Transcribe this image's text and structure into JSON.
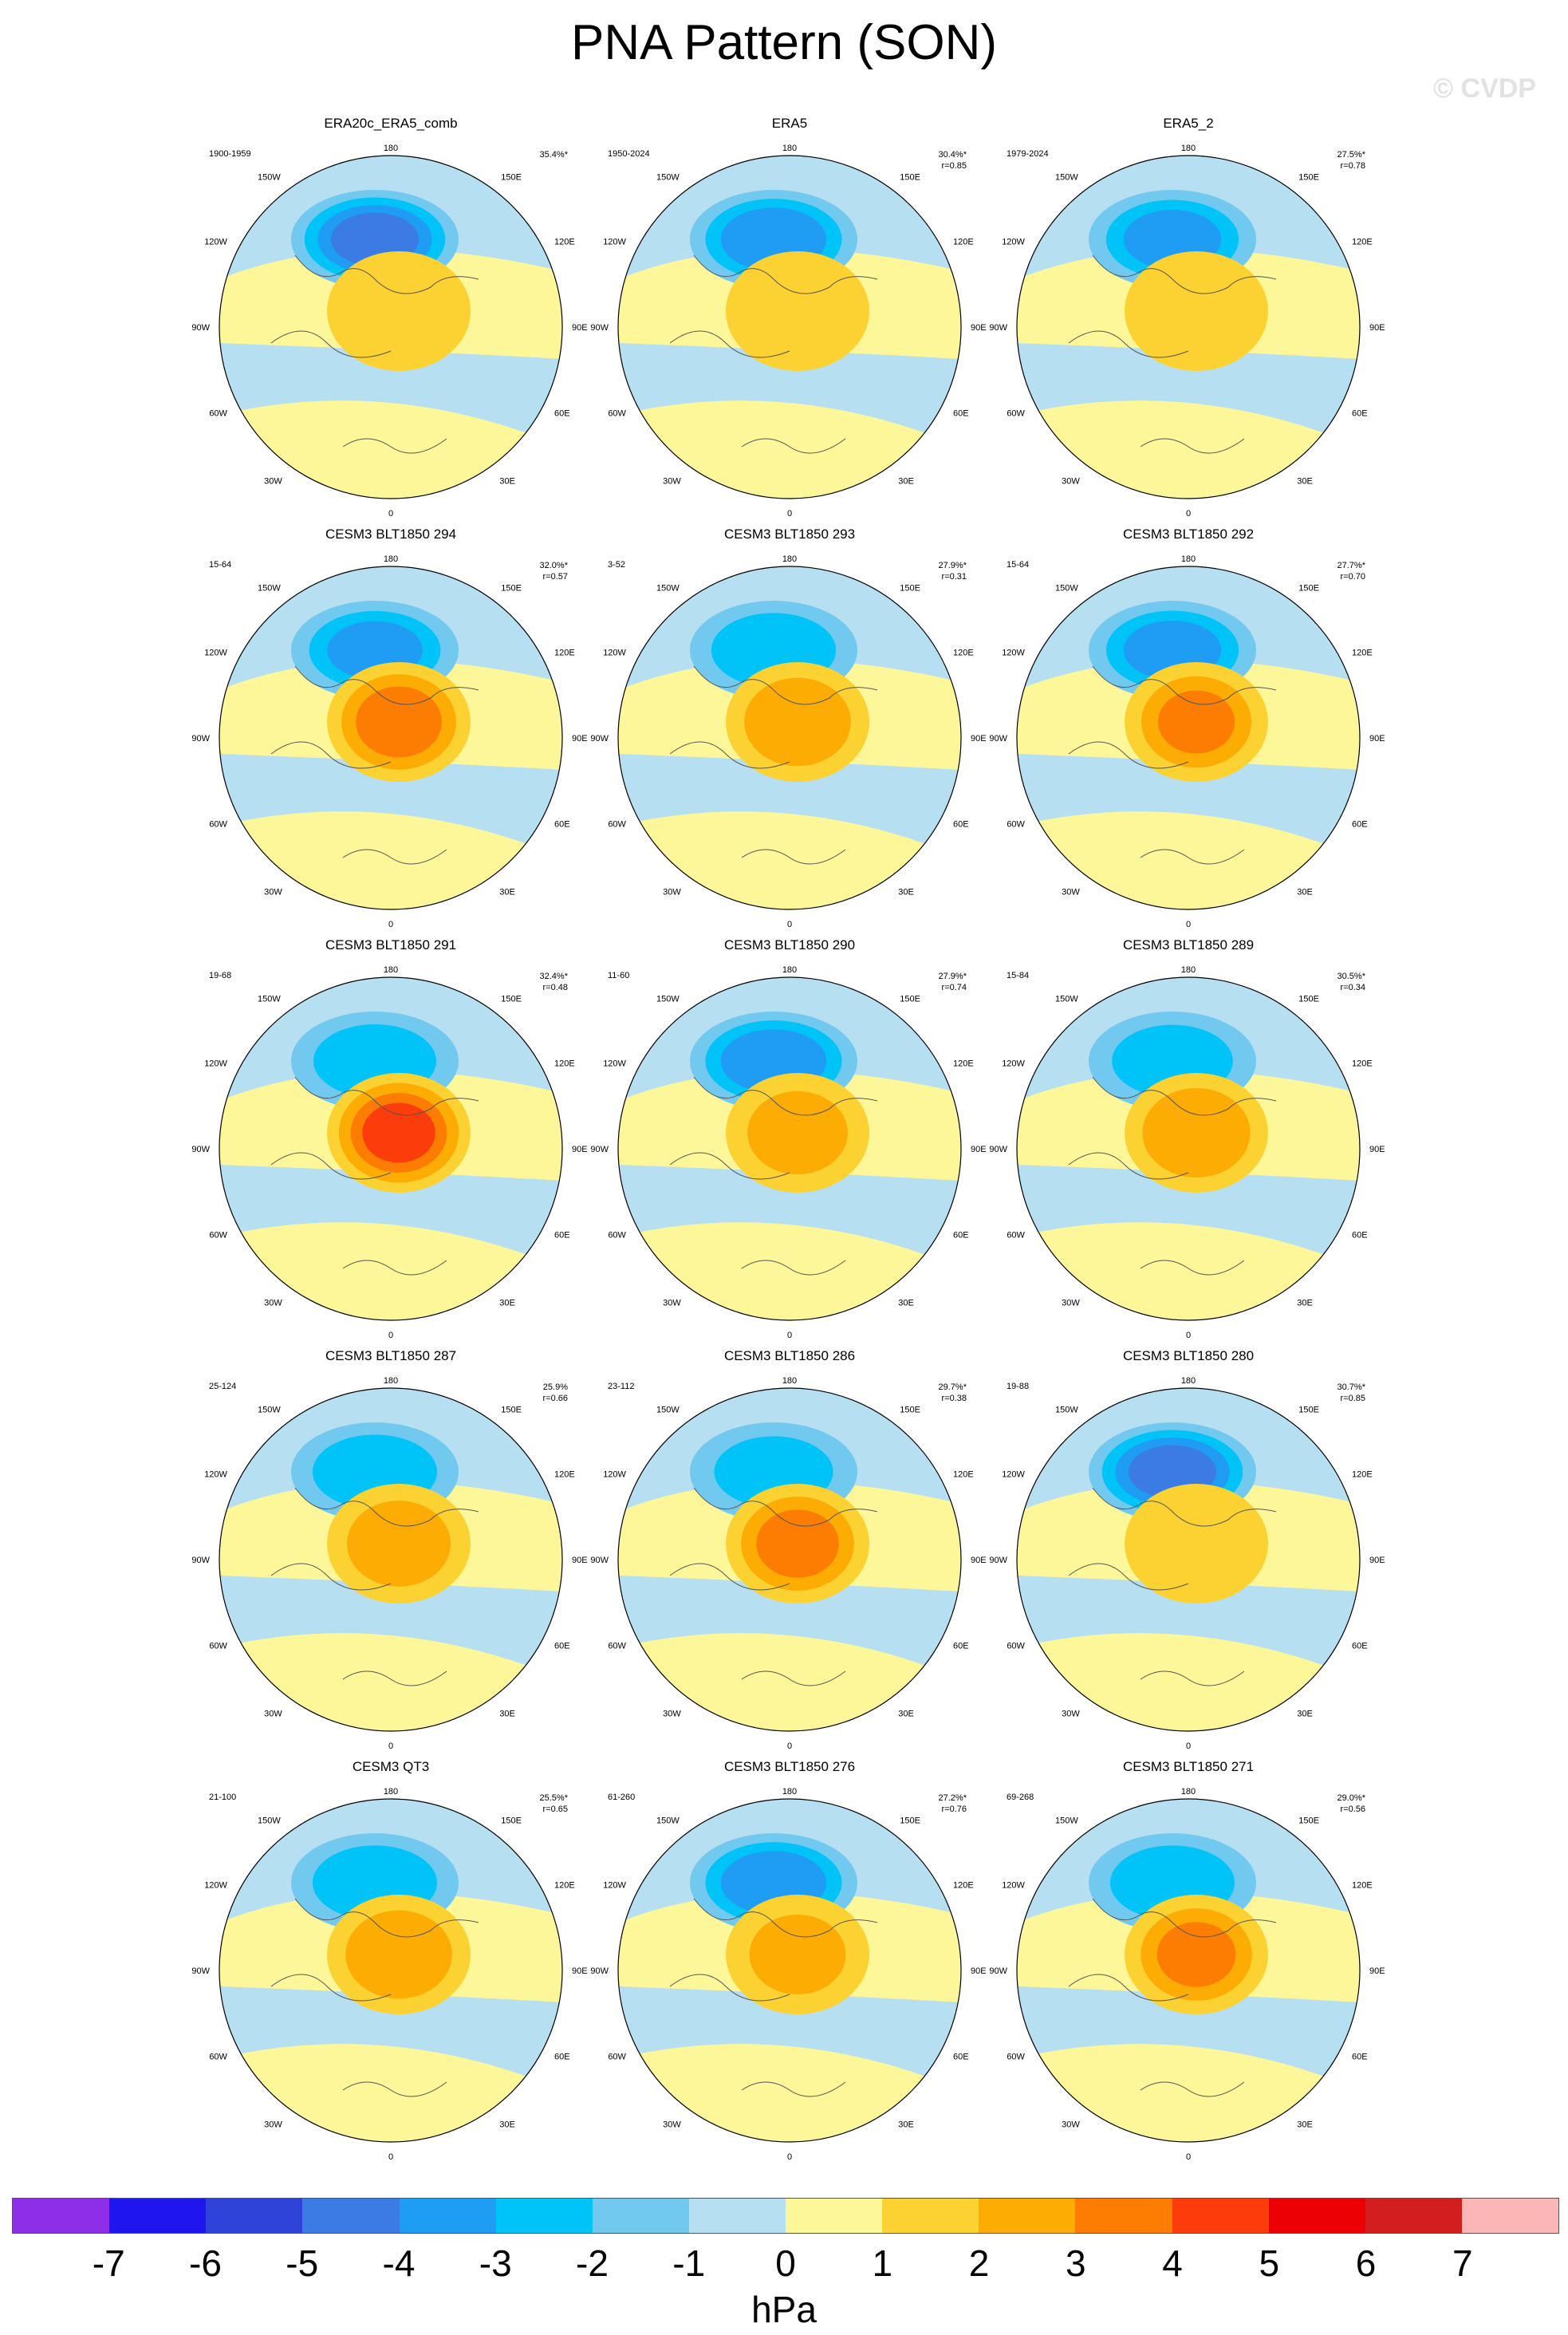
{
  "title": "PNA Pattern (SON)",
  "watermark": "© CVDP",
  "unit": "hPa",
  "colorbar": {
    "labels": [
      "-7",
      "-6",
      "-5",
      "-4",
      "-3",
      "-2",
      "-1",
      "0",
      "1",
      "2",
      "3",
      "4",
      "5",
      "6",
      "7"
    ],
    "colors": [
      "#8e2ee8",
      "#1d16ef",
      "#3043d8",
      "#3a7ce4",
      "#1f9cf4",
      "#00c3f7",
      "#71c9f0",
      "#b6dff2",
      "#fdf79a",
      "#fcd232",
      "#fdac04",
      "#fd7d02",
      "#fd3c0c",
      "#ec0006",
      "#d21e1e",
      "#fdb6b6"
    ]
  },
  "lon_labels": [
    "180",
    "150E",
    "120E",
    "90E",
    "60E",
    "30E",
    "0",
    "30W",
    "60W",
    "90W",
    "120W",
    "150W"
  ],
  "chart_data": [
    {
      "type": "heatmap",
      "title": "ERA20c_ERA5_comb",
      "years": "1900-1959",
      "pct": "35.4%*",
      "corr": "",
      "low": -4.2,
      "high": 1.2
    },
    {
      "type": "heatmap",
      "title": "ERA5",
      "years": "1950-2024",
      "pct": "30.4%*",
      "corr": "r=0.85",
      "low": -3.6,
      "high": 1.8
    },
    {
      "type": "heatmap",
      "title": "ERA5_2",
      "years": "1979-2024",
      "pct": "27.5%*",
      "corr": "r=0.78",
      "low": -3.2,
      "high": 1.6
    },
    {
      "type": "heatmap",
      "title": "CESM3 BLT1850 294",
      "years": "15-64",
      "pct": "32.0%*",
      "corr": "r=0.57",
      "low": -3.1,
      "high": 3.6
    },
    {
      "type": "heatmap",
      "title": "CESM3 BLT1850 293",
      "years": "3-52",
      "pct": "27.9%*",
      "corr": "r=0.31",
      "low": -2.6,
      "high": 2.8
    },
    {
      "type": "heatmap",
      "title": "CESM3 BLT1850 292",
      "years": "15-64",
      "pct": "27.7%*",
      "corr": "r=0.70",
      "low": -3.2,
      "high": 3.1
    },
    {
      "type": "heatmap",
      "title": "CESM3 BLT1850 291",
      "years": "19-68",
      "pct": "32.4%*",
      "corr": "r=0.48",
      "low": -2.5,
      "high": 4.4
    },
    {
      "type": "heatmap",
      "title": "CESM3 BLT1850 290",
      "years": "11-60",
      "pct": "27.9%*",
      "corr": "r=0.74",
      "low": -3.6,
      "high": 2.4
    },
    {
      "type": "heatmap",
      "title": "CESM3 BLT1850 289",
      "years": "15-84",
      "pct": "30.5%*",
      "corr": "r=0.34",
      "low": -2.4,
      "high": 2.9
    },
    {
      "type": "heatmap",
      "title": "CESM3 BLT1850 287",
      "years": "25-124",
      "pct": "25.9%",
      "corr": "r=0.66",
      "low": -2.6,
      "high": 2.6
    },
    {
      "type": "heatmap",
      "title": "CESM3 BLT1850 286",
      "years": "23-112",
      "pct": "29.7%*",
      "corr": "r=0.38",
      "low": -2.3,
      "high": 3.4
    },
    {
      "type": "heatmap",
      "title": "CESM3 BLT1850 280",
      "years": "19-88",
      "pct": "30.7%*",
      "corr": "r=0.85",
      "low": -4.2,
      "high": 1.4
    },
    {
      "type": "heatmap",
      "title": "CESM3 QT3",
      "years": "21-100",
      "pct": "25.5%*",
      "corr": "r=0.65",
      "low": -2.6,
      "high": 2.8
    },
    {
      "type": "heatmap",
      "title": "CESM3 BLT1850 276",
      "years": "61-260",
      "pct": "27.2%*",
      "corr": "r=0.76",
      "low": -3.6,
      "high": 2.2
    },
    {
      "type": "heatmap",
      "title": "CESM3 BLT1850 271",
      "years": "69-268",
      "pct": "29.0%*",
      "corr": "r=0.56",
      "low": -2.6,
      "high": 3.2
    }
  ]
}
